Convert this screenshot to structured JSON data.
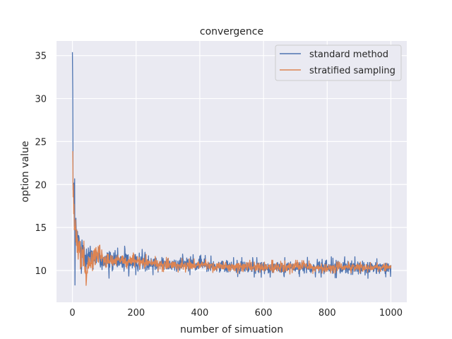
{
  "chart_data": {
    "type": "line",
    "title": "convergence",
    "xlabel": "number of simuation",
    "ylabel": "option value",
    "xlim": [
      -50,
      1050
    ],
    "ylim": [
      6.3,
      36.7
    ],
    "xticks": [
      0,
      200,
      400,
      600,
      800,
      1000
    ],
    "yticks": [
      10,
      15,
      20,
      25,
      30,
      35
    ],
    "grid": true,
    "legend_position": "top-right",
    "series": [
      {
        "name": "standard method",
        "color": "#4c72b0",
        "envelope": [
          [
            0,
            35.4,
            12.2
          ],
          [
            2,
            26.5,
            13.0
          ],
          [
            5,
            24.0,
            11.5
          ],
          [
            8,
            19.0,
            8.3
          ],
          [
            12,
            18.5,
            10.0
          ],
          [
            18,
            16.5,
            9.5
          ],
          [
            25,
            15.0,
            9.8
          ],
          [
            35,
            15.0,
            9.3
          ],
          [
            50,
            14.5,
            9.2
          ],
          [
            70,
            14.0,
            9.5
          ],
          [
            100,
            13.3,
            9.0
          ],
          [
            130,
            13.0,
            9.2
          ],
          [
            170,
            12.8,
            9.3
          ],
          [
            200,
            12.5,
            9.5
          ],
          [
            250,
            12.4,
            9.5
          ],
          [
            300,
            12.0,
            9.4
          ],
          [
            350,
            11.9,
            9.5
          ],
          [
            400,
            11.8,
            9.5
          ],
          [
            500,
            11.5,
            9.3
          ],
          [
            600,
            11.5,
            9.2
          ],
          [
            700,
            11.5,
            9.3
          ],
          [
            800,
            11.6,
            9.2
          ],
          [
            900,
            11.6,
            9.0
          ],
          [
            1000,
            11.2,
            9.3
          ]
        ]
      },
      {
        "name": "stratified sampling",
        "color": "#dd8452",
        "envelope": [
          [
            0,
            23.8,
            14.5
          ],
          [
            3,
            23.9,
            15.5
          ],
          [
            6,
            18.5,
            12.0
          ],
          [
            10,
            17.0,
            10.5
          ],
          [
            15,
            15.0,
            10.5
          ],
          [
            25,
            14.5,
            9.5
          ],
          [
            35,
            13.5,
            9.0
          ],
          [
            42,
            13.0,
            7.8
          ],
          [
            60,
            13.0,
            9.5
          ],
          [
            80,
            14.2,
            10.0
          ],
          [
            100,
            12.5,
            9.8
          ],
          [
            150,
            12.3,
            10.0
          ],
          [
            200,
            12.0,
            10.0
          ],
          [
            250,
            11.8,
            10.0
          ],
          [
            300,
            11.5,
            9.8
          ],
          [
            400,
            11.3,
            9.8
          ],
          [
            500,
            11.2,
            9.7
          ],
          [
            600,
            11.2,
            9.5
          ],
          [
            700,
            11.2,
            9.6
          ],
          [
            800,
            11.0,
            9.7
          ],
          [
            900,
            11.0,
            9.7
          ],
          [
            1000,
            10.8,
            10.0
          ]
        ]
      }
    ]
  }
}
